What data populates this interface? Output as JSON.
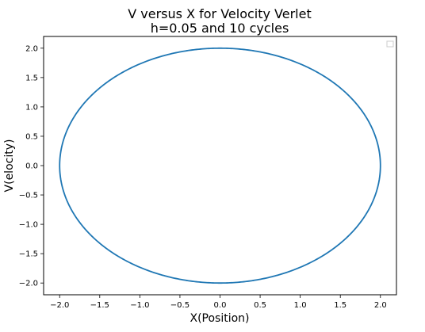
{
  "chart_data": {
    "type": "line",
    "title_lines": [
      "V versus X for Velocity Verlet",
      "h=0.05 and 10 cycles"
    ],
    "xlabel": "X(Position)",
    "ylabel": "V(elocity)",
    "xlim": [
      -2.2,
      2.2
    ],
    "ylim": [
      -2.2,
      2.2
    ],
    "xticks": [
      -2.0,
      -1.5,
      -1.0,
      -0.5,
      0.0,
      0.5,
      1.0,
      1.5,
      2.0
    ],
    "xtick_labels": [
      "−2.0",
      "−1.5",
      "−1.0",
      "−0.5",
      "0.0",
      "0.5",
      "1.0",
      "1.5",
      "2.0"
    ],
    "yticks": [
      2.0,
      1.5,
      1.0,
      0.5,
      0.0,
      -0.5,
      -1.0,
      -1.5,
      -2.0
    ],
    "ytick_labels": [
      "2.0",
      "1.5",
      "1.0",
      "0.5",
      "0.0",
      "−0.5",
      "−1.0",
      "−1.5",
      "−2.0"
    ],
    "grid": false,
    "legend": "top-right (empty)",
    "series": [
      {
        "color": "#1f77b4",
        "shape": "ellipse",
        "center": [
          0,
          0
        ],
        "x_amplitude": 2.0,
        "y_amplitude": 2.0,
        "cycles": 10,
        "step_h": 0.05
      }
    ]
  }
}
